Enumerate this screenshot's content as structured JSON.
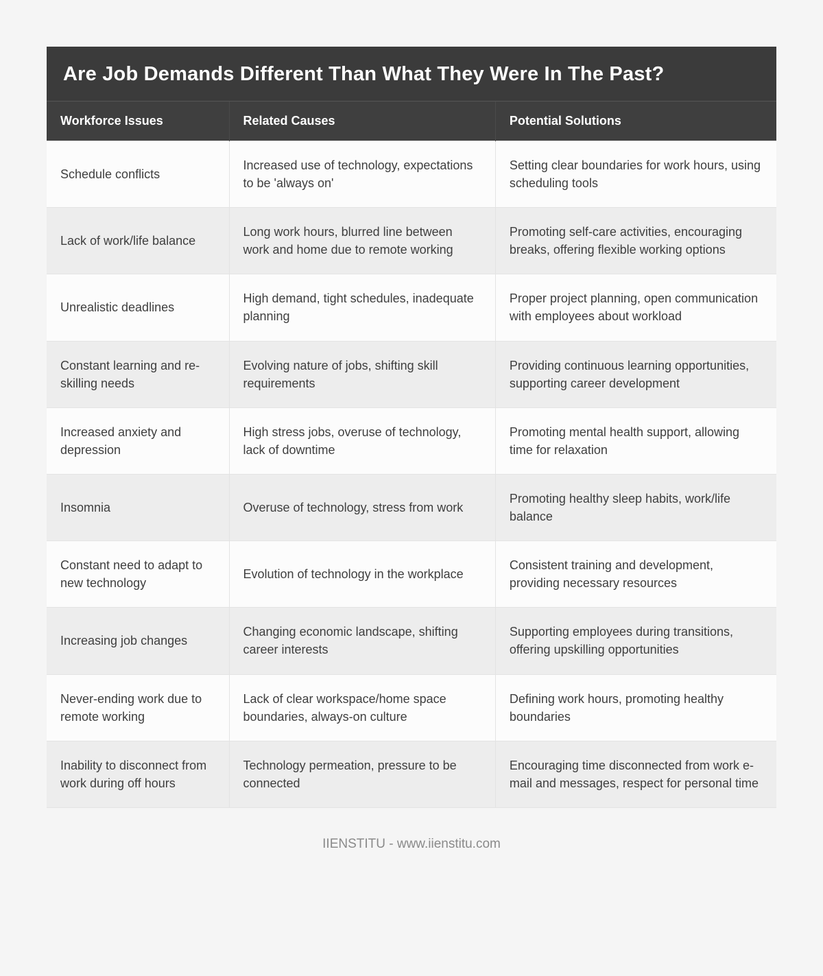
{
  "title": "Are Job Demands Different Than What They Were In The Past?",
  "columns": [
    "Workforce Issues",
    "Related Causes",
    "Potential Solutions"
  ],
  "rows": [
    {
      "issue": "Schedule conflicts",
      "cause": "Increased use of technology, expectations to be 'always on'",
      "solution": "Setting clear boundaries for work hours, using scheduling tools"
    },
    {
      "issue": "Lack of work/life balance",
      "cause": "Long work hours, blurred line between work and home due to remote working",
      "solution": "Promoting self-care activities, encouraging breaks, offering flexible working options"
    },
    {
      "issue": "Unrealistic deadlines",
      "cause": "High demand, tight schedules, inadequate planning",
      "solution": "Proper project planning, open communication with employees about workload"
    },
    {
      "issue": "Constant learning and re-skilling needs",
      "cause": "Evolving nature of jobs, shifting skill requirements",
      "solution": "Providing continuous learning opportunities, supporting career development"
    },
    {
      "issue": "Increased anxiety and depression",
      "cause": "High stress jobs, overuse of technology, lack of downtime",
      "solution": "Promoting mental health support, allowing time for relaxation"
    },
    {
      "issue": "Insomnia",
      "cause": "Overuse of technology, stress from work",
      "solution": "Promoting healthy sleep habits, work/life balance"
    },
    {
      "issue": "Constant need to adapt to new technology",
      "cause": "Evolution of technology in the workplace",
      "solution": "Consistent training and development, providing necessary resources"
    },
    {
      "issue": "Increasing job changes",
      "cause": "Changing economic landscape, shifting career interests",
      "solution": "Supporting employees during transitions, offering upskilling opportunities"
    },
    {
      "issue": "Never-ending work due to remote working",
      "cause": "Lack of clear workspace/home space boundaries, always-on culture",
      "solution": "Defining work hours, promoting healthy boundaries"
    },
    {
      "issue": "Inability to disconnect from work during off hours",
      "cause": "Technology permeation, pressure to be connected",
      "solution": "Encouraging time disconnected from work e-mail and messages, respect for personal time"
    }
  ],
  "footer": "IIENSTITU - www.iienstitu.com"
}
